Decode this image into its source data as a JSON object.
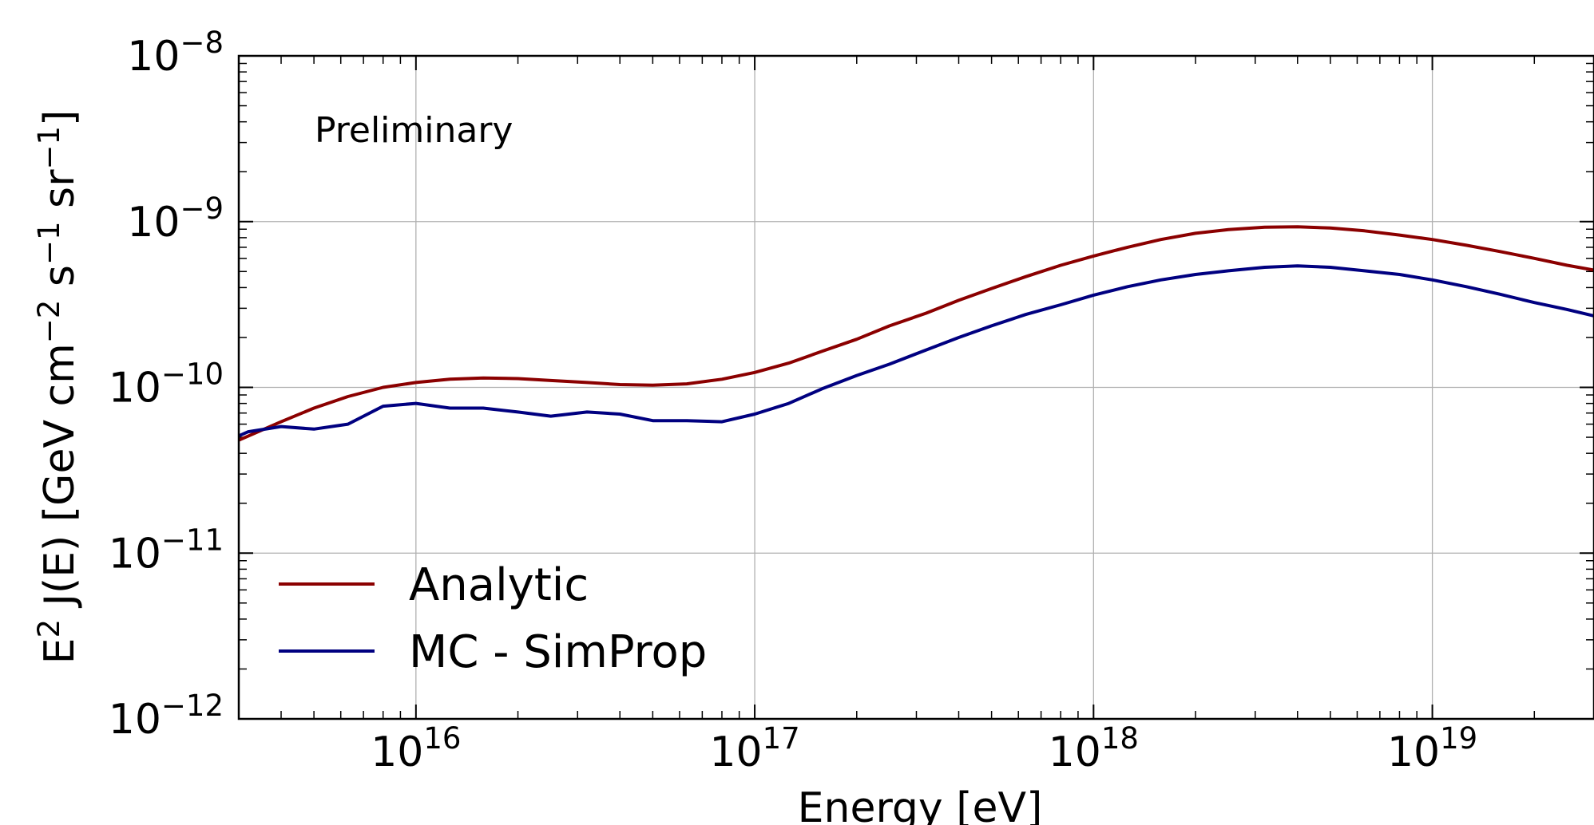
{
  "chart_data": {
    "type": "line",
    "xscale": "log",
    "yscale": "log",
    "xlim": [
      3000000000000000.0,
      3e+19
    ],
    "ylim": [
      1e-12,
      1e-08
    ],
    "grid": true,
    "legend_position": "lower-left",
    "xlabel": "Energy [eV]",
    "ylabel_parts": {
      "a": "E",
      "a_sup": "2",
      "b": " J(E) [GeV cm",
      "b_sup": "−2",
      "c": " s",
      "c_sup": "−1",
      "d": " sr",
      "d_sup": "−1",
      "e": "]"
    },
    "annotation": "Preliminary",
    "x_ticks": [
      {
        "value": 1e+16,
        "base": "10",
        "exp": "16"
      },
      {
        "value": 1e+17,
        "base": "10",
        "exp": "17"
      },
      {
        "value": 1e+18,
        "base": "10",
        "exp": "18"
      },
      {
        "value": 1e+19,
        "base": "10",
        "exp": "19"
      }
    ],
    "y_ticks": [
      {
        "value": 1e-08,
        "base": "10",
        "exp": "−8"
      },
      {
        "value": 1e-09,
        "base": "10",
        "exp": "−9"
      },
      {
        "value": 1e-10,
        "base": "10",
        "exp": "−10"
      },
      {
        "value": 1e-11,
        "base": "10",
        "exp": "−11"
      },
      {
        "value": 1e-12,
        "base": "10",
        "exp": "−12"
      }
    ],
    "series": [
      {
        "name": "Analytic",
        "color": "#8b0000",
        "x": [
          3000000000000000.0,
          4000000000000000.0,
          5000000000000000.0,
          6300000000000000.0,
          8000000000000000.0,
          1e+16,
          1.26e+16,
          1.58e+16,
          2e+16,
          2.5e+16,
          3.2e+16,
          4e+16,
          5e+16,
          6.3e+16,
          8e+16,
          1e+17,
          1.26e+17,
          1.58e+17,
          2e+17,
          2.5e+17,
          3.2e+17,
          4e+17,
          5e+17,
          6.3e+17,
          8e+17,
          1e+18,
          1.26e+18,
          1.58e+18,
          2e+18,
          2.5e+18,
          3.2e+18,
          4e+18,
          5e+18,
          6.3e+18,
          8e+18,
          1e+19,
          1.26e+19,
          1.58e+19,
          2e+19,
          2.5e+19,
          3e+19
        ],
        "y": [
          4.8e-11,
          6.2e-11,
          7.5e-11,
          8.8e-11,
          1e-10,
          1.07e-10,
          1.12e-10,
          1.14e-10,
          1.13e-10,
          1.1e-10,
          1.07e-10,
          1.04e-10,
          1.03e-10,
          1.05e-10,
          1.12e-10,
          1.23e-10,
          1.4e-10,
          1.65e-10,
          1.95e-10,
          2.35e-10,
          2.8e-10,
          3.35e-10,
          3.95e-10,
          4.65e-10,
          5.45e-10,
          6.2e-10,
          7e-10,
          7.8e-10,
          8.5e-10,
          8.95e-10,
          9.25e-10,
          9.3e-10,
          9.15e-10,
          8.8e-10,
          8.3e-10,
          7.8e-10,
          7.2e-10,
          6.6e-10,
          6e-10,
          5.45e-10,
          5.1e-10
        ]
      },
      {
        "name": "MC - SimProp",
        "color": "#000080",
        "x": [
          3000000000000000.0,
          3200000000000000.0,
          4000000000000000.0,
          5000000000000000.0,
          6300000000000000.0,
          8000000000000000.0,
          1e+16,
          1.26e+16,
          1.58e+16,
          2e+16,
          2.5e+16,
          3.2e+16,
          4e+16,
          5e+16,
          6.3e+16,
          8e+16,
          1e+17,
          1.26e+17,
          1.58e+17,
          2e+17,
          2.5e+17,
          3.2e+17,
          4e+17,
          5e+17,
          6.3e+17,
          8e+17,
          1e+18,
          1.26e+18,
          1.58e+18,
          2e+18,
          2.5e+18,
          3.2e+18,
          4e+18,
          5e+18,
          6.3e+18,
          8e+18,
          1e+19,
          1.26e+19,
          1.58e+19,
          2e+19,
          2.5e+19,
          3e+19
        ],
        "y": [
          5.1e-11,
          5.4e-11,
          5.8e-11,
          5.6e-11,
          6e-11,
          7.7e-11,
          8e-11,
          7.5e-11,
          7.5e-11,
          7.1e-11,
          6.7e-11,
          7.1e-11,
          6.9e-11,
          6.3e-11,
          6.3e-11,
          6.2e-11,
          6.9e-11,
          8e-11,
          9.8e-11,
          1.18e-10,
          1.38e-10,
          1.68e-10,
          2e-10,
          2.35e-10,
          2.75e-10,
          3.15e-10,
          3.6e-10,
          4.05e-10,
          4.45e-10,
          4.8e-10,
          5.05e-10,
          5.3e-10,
          5.4e-10,
          5.3e-10,
          5.05e-10,
          4.8e-10,
          4.45e-10,
          4.05e-10,
          3.65e-10,
          3.25e-10,
          2.95e-10,
          2.7e-10
        ]
      }
    ]
  }
}
